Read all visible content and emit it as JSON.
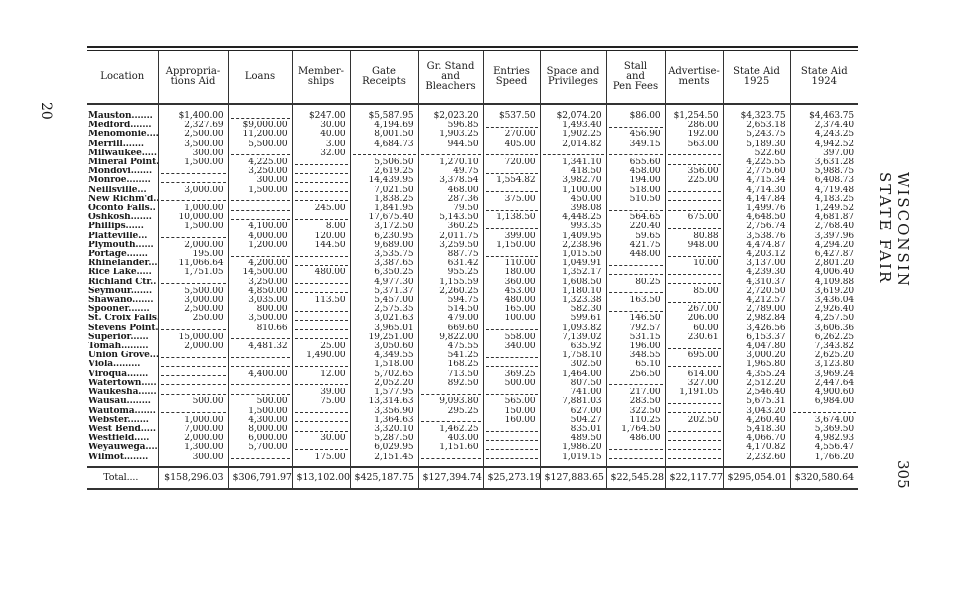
{
  "page_number_left": "20",
  "running_head": "WISCONSIN STATE FAIR",
  "page_number_right": "305",
  "columns": [
    "Location",
    "Appropria-\ntions Aid",
    "Loans",
    "Member-\nships",
    "Gate\nReceipts",
    "Gr. Stand\nand\nBleachers",
    "Entries\nSpeed",
    "Space and\nPrivileges",
    "Stall\nand\nPen Fees",
    "Advertise-\nments",
    "State Aid\n1925",
    "State Aid\n1924"
  ],
  "rows": [
    [
      "Mauston",
      "$1,400.00",
      null,
      "$247.00",
      "$5,587.95",
      "$2,023.20",
      "$537.50",
      "$2,074.20",
      "$86.00",
      "$1,254.50",
      "$4,323.75",
      "$4,463.75"
    ],
    [
      "Medford",
      "2,327.69",
      "$9,000.00",
      "30.00",
      "4,194.69",
      "596.85",
      null,
      "1,493.40",
      null,
      "286.00",
      "2,653.18",
      "2,374.40"
    ],
    [
      "Menomonie",
      "2,500.00",
      "11,200.00",
      "40.00",
      "8,001.50",
      "1,903.25",
      "270.00",
      "1,902.25",
      "456.90",
      "192.00",
      "5,243.75",
      "4,243.25"
    ],
    [
      "Merrill",
      "3,500.00",
      "5,500.00",
      "3.00",
      "4,684.73",
      "944.50",
      "405.00",
      "2,014.82",
      "349.15",
      "563.00",
      "5,189.30",
      "4,942.52"
    ],
    [
      "Milwaukee",
      "300.00",
      null,
      "32.00",
      null,
      null,
      null,
      null,
      null,
      null,
      "522.60",
      "397.00"
    ],
    [
      "Mineral Point",
      "1,500.00",
      "4,225.00",
      null,
      "5,506.50",
      "1,270.10",
      "720.00",
      "1,341.10",
      "655.60",
      null,
      "4,225.55",
      "3,631.28"
    ],
    [
      "Mondovi",
      null,
      "3,250.00",
      null,
      "2,619.25",
      "49.75",
      null,
      "418.50",
      "458.00",
      "356.00",
      "2,775.60",
      "5,988.75"
    ],
    [
      "Monroe",
      null,
      "300.00",
      null,
      "14,439.95",
      "3,378.54",
      "1,554.82",
      "3,982.70",
      "194.00",
      "225.00",
      "4,715.34",
      "6,408.73"
    ],
    [
      "Neillsville",
      "3,000.00",
      "1,500.00",
      null,
      "7,021.50",
      "468.00",
      null,
      "1,100.00",
      "518.00",
      null,
      "4,714.30",
      "4,719.48"
    ],
    [
      "New Richm'd",
      null,
      null,
      null,
      "1,838.25",
      "287.36",
      "375.00",
      "450.00",
      "510.50",
      null,
      "4,147.84",
      "4,183.25"
    ],
    [
      "Oconto Falls",
      "1,000.00",
      null,
      "245.00",
      "1,841.95",
      "79.50",
      null,
      "398.08",
      null,
      null,
      "1,499.76",
      "1,249.52"
    ],
    [
      "Oshkosh",
      "10,000.00",
      null,
      null,
      "17,675.40",
      "5,143.50",
      "1,138.50",
      "4,448.25",
      "564.65",
      "675.00",
      "4,648.50",
      "4,681.87"
    ],
    [
      "Phillips",
      "1,500.00",
      "4,100.00",
      "8.00",
      "3,172.50",
      "360.25",
      null,
      "993.35",
      "220.40",
      null,
      "2,756.74",
      "2,768.40"
    ],
    [
      "Platteville",
      null,
      "4,000.00",
      "120.00",
      "6,230.95",
      "2,011.75",
      "399.00",
      "1,409.95",
      "59.65",
      "80.88",
      "3,538.76",
      "3,397.96"
    ],
    [
      "Plymouth",
      "2,000.00",
      "1,200.00",
      "144.50",
      "9,689.00",
      "3,259.50",
      "1,150.00",
      "2,238.96",
      "421.75",
      "948.00",
      "4,474.87",
      "4,294.20"
    ],
    [
      "Portage",
      "195.00",
      null,
      null,
      "3,535.75",
      "887.75",
      null,
      "1,015.50",
      "448.00",
      null,
      "4,203.12",
      "6,427.87"
    ],
    [
      "Rhinelander",
      "11,066.64",
      "4,200.00",
      null,
      "3,387.65",
      "631.42",
      "110.00",
      "1,049.91",
      null,
      "10.00",
      "3,137.00",
      "2,801.20"
    ],
    [
      "Rice Lake",
      "1,751.05",
      "14,500.00",
      "480.00",
      "6,350.25",
      "955.25",
      "180.00",
      "1,352.17",
      null,
      null,
      "4,239.30",
      "4,006.40"
    ],
    [
      "Richland Ctr.",
      null,
      "3,250.00",
      null,
      "4,977.30",
      "1,155.59",
      "360.00",
      "1,608.50",
      "80.25",
      null,
      "4,310.37",
      "4,109.88"
    ],
    [
      "Seymour",
      "5,500.00",
      "4,850.00",
      null,
      "5,371.37",
      "2,260.25",
      "453.00",
      "1,180.10",
      null,
      "85.00",
      "2,720.50",
      "3,619.20"
    ],
    [
      "Shawano",
      "3,000.00",
      "3,035.00",
      "113.50",
      "5,457.00",
      "594.75",
      "480.00",
      "1,323.38",
      "163.50",
      null,
      "4,212.57",
      "3,436.04"
    ],
    [
      "Spooner",
      "2,500.00",
      "800.00",
      null,
      "2,575.35",
      "514.50",
      "165.00",
      "582.30",
      null,
      "267.00",
      "2,789.00",
      "2,926.40"
    ],
    [
      "St. Croix Falls",
      "250.00",
      "3,500.00",
      null,
      "3,021.63",
      "479.00",
      "100.00",
      "599.61",
      "146.50",
      "206.00",
      "2,982.84",
      "4,257.50"
    ],
    [
      "Stevens Point",
      null,
      "810.66",
      null,
      "3,965.01",
      "669.60",
      null,
      "1,093.82",
      "792.57",
      "60.00",
      "3,426.56",
      "3,606.36"
    ],
    [
      "Superior",
      "15,000.00",
      null,
      null,
      "19,251.00",
      "9,822.00",
      "558.00",
      "7,139.02",
      "531.15",
      "230.61",
      "6,153.37",
      "6,262.25"
    ],
    [
      "Tomah",
      "2,000.00",
      "4,481.32",
      "25.00",
      "3,050.60",
      "475.55",
      "340.00",
      "635.92",
      "196.00",
      null,
      "4,047.80",
      "7,343.82"
    ],
    [
      "Union Grove",
      null,
      null,
      "1,490.00",
      "4,349.55",
      "541.25",
      null,
      "1,758.10",
      "348.55",
      "695.00",
      "3,000.20",
      "2,625.20"
    ],
    [
      "Viola",
      null,
      null,
      null,
      "1,518.00",
      "168.25",
      null,
      "302.50",
      "65.10",
      null,
      "1,965.80",
      "3,123.80"
    ],
    [
      "Viroqua",
      null,
      "4,400.00",
      "12.00",
      "5,702.65",
      "713.50",
      "369.25",
      "1,464.00",
      "256.50",
      "614.00",
      "4,355.24",
      "3,969.24"
    ],
    [
      "Watertown",
      null,
      null,
      null,
      "2,052.20",
      "892.50",
      "500.00",
      "807.50",
      null,
      "327.00",
      "2,512.20",
      "2,447.64"
    ],
    [
      "Waukesha",
      null,
      null,
      "39.00",
      "1,577.95",
      null,
      null,
      "741.00",
      "217.00",
      "1,191.05",
      "2,546.40",
      "4,900.60"
    ],
    [
      "Wausau",
      "500.00",
      "500.00",
      "75.00",
      "13,314.63",
      "9,093.80",
      "565.00",
      "7,881.03",
      "283.50",
      null,
      "5,675.31",
      "6,984.00"
    ],
    [
      "Wautoma",
      null,
      "1,500.00",
      null,
      "3,356.90",
      "295.25",
      "150.00",
      "627.00",
      "322.50",
      null,
      "3,043.20",
      null
    ],
    [
      "Webster",
      "1,000.00",
      "4,300.00",
      null,
      "1,364.63",
      null,
      "160.00",
      "504.27",
      "110.25",
      "202.50",
      "4,260.40",
      "3,674.00"
    ],
    [
      "West Bend",
      "7,000.00",
      "8,000.00",
      null,
      "3,320.10",
      "1,462.25",
      null,
      "835.01",
      "1,764.50",
      null,
      "5,418.30",
      "5,369.50"
    ],
    [
      "Westfield",
      "2,000.00",
      "6,000.00",
      "30.00",
      "5,287.50",
      "403.00",
      null,
      "489.50",
      "486.00",
      null,
      "4,066.70",
      "4,982.93"
    ],
    [
      "Weyauwega",
      "1,300.00",
      "5,700.00",
      null,
      "6,029.95",
      "1,151.60",
      null,
      "1,986.20",
      null,
      null,
      "4,170.82",
      "4,556.47"
    ],
    [
      "Wilmot",
      "300.00",
      null,
      "175.00",
      "2,151.45",
      null,
      null,
      "1,019.15",
      null,
      null,
      "2,232.60",
      "1,766.20"
    ]
  ],
  "total": [
    "Total",
    "$158,296.03",
    "$306,791.97",
    "$13,102.00",
    "$425,187.75",
    "$127,394.74",
    "$25,273.19",
    "$127,883.65",
    "$22,545.28",
    "$22,117.77",
    "$295,054.01",
    "$320,580.64"
  ]
}
